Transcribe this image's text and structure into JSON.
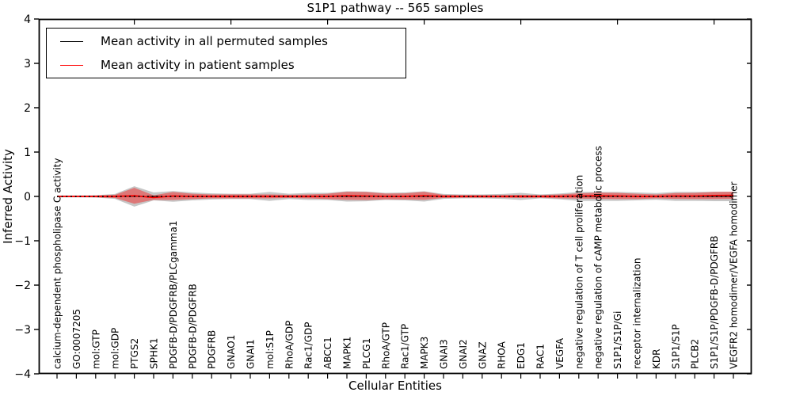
{
  "title": "S1P1 pathway -- 565 samples",
  "legend": {
    "items": [
      {
        "label": "Mean activity in all permuted samples",
        "color": "#000000"
      },
      {
        "label": "Mean activity in patient samples",
        "color": "#ff0000"
      }
    ]
  },
  "chart_data": {
    "type": "line",
    "title": "S1P1 pathway -- 565 samples",
    "xlabel": "Cellular Entities",
    "ylabel": "Inferred Activity",
    "ylim": [
      -4,
      4
    ],
    "yticks": [
      4,
      3,
      2,
      1,
      0,
      -1,
      -2,
      -3,
      -4
    ],
    "grid": false,
    "legend_position": "upper left",
    "categories": [
      "calcium-dependent phospholipase C activity",
      "GO:0007205",
      "mol:GTP",
      "mol:GDP",
      "PTGS2",
      "SPHK1",
      "PDGFB-D/PDGFRB/PLCgamma1",
      "PDGFB-D/PDGFRB",
      "PDGFRB",
      "GNAO1",
      "GNAI1",
      "mol:S1P",
      "RhoA/GDP",
      "Rac1/GDP",
      "ABCC1",
      "MAPK1",
      "PLCG1",
      "RhoA/GTP",
      "Rac1/GTP",
      "MAPK3",
      "GNAI3",
      "GNAI2",
      "GNAZ",
      "RHOA",
      "EDG1",
      "RAC1",
      "VEGFA",
      "negative regulation of T cell proliferation",
      "negative regulation of cAMP metabolic process",
      "S1P1/S1P/Gi",
      "receptor internalization",
      "KDR",
      "S1P1/S1P",
      "PLCB2",
      "S1P1/S1P/PDGFB-D/PDGFRB",
      "VEGFR2 homodimer/VEGFA homodimer"
    ],
    "series": [
      {
        "name": "Mean activity in all permuted samples",
        "color": "#000000",
        "line_style": "dotted",
        "values": [
          0,
          0,
          0,
          0,
          0,
          0,
          0,
          0,
          0,
          0,
          0,
          0,
          0,
          0,
          0,
          0,
          0,
          0,
          0,
          0,
          0,
          0,
          0,
          0,
          0,
          0,
          0,
          0,
          0,
          0,
          0,
          0,
          0,
          0,
          0,
          0
        ],
        "std": [
          0.02,
          0.02,
          0.025,
          0.055,
          0.23,
          0.09,
          0.12,
          0.09,
          0.07,
          0.06,
          0.06,
          0.1,
          0.06,
          0.08,
          0.08,
          0.115,
          0.11,
          0.08,
          0.09,
          0.115,
          0.055,
          0.045,
          0.045,
          0.055,
          0.08,
          0.045,
          0.065,
          0.1,
          0.1,
          0.1,
          0.09,
          0.075,
          0.1,
          0.1,
          0.107,
          0.107
        ],
        "band_color": "#808080",
        "band_opacity": 0.45
      },
      {
        "name": "Mean activity in patient samples",
        "color": "#ff0000",
        "line_style": "solid",
        "values": [
          0,
          0,
          0,
          0,
          0.015,
          -0.025,
          0.01,
          0,
          0,
          0,
          0,
          0,
          0,
          0,
          0,
          0.015,
          0.01,
          0,
          0,
          0.015,
          0,
          0,
          0,
          0,
          0,
          0,
          0,
          0.01,
          0.015,
          0.01,
          0,
          0,
          0.01,
          0.01,
          0.02,
          0.025
        ],
        "std": [
          0.015,
          0.015,
          0.02,
          0.035,
          0.18,
          0.05,
          0.09,
          0.06,
          0.045,
          0.045,
          0.045,
          0.045,
          0.035,
          0.045,
          0.06,
          0.09,
          0.09,
          0.065,
          0.07,
          0.09,
          0.035,
          0.03,
          0.03,
          0.03,
          0.035,
          0.03,
          0.045,
          0.06,
          0.07,
          0.07,
          0.06,
          0.045,
          0.065,
          0.07,
          0.08,
          0.08
        ],
        "band_color": "#ff0000",
        "band_opacity": 0.4
      }
    ],
    "top_tick_indices": [
      4,
      9,
      14,
      19,
      24,
      29,
      34
    ]
  }
}
